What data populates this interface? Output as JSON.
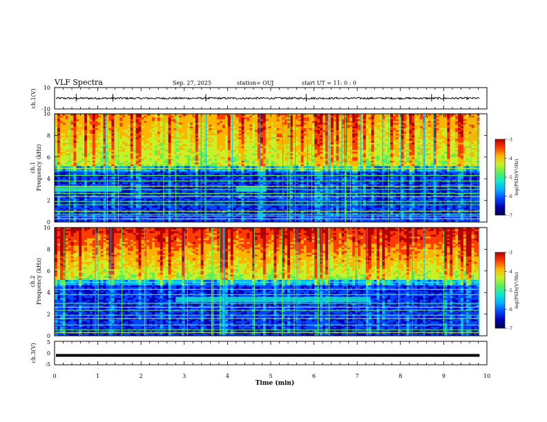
{
  "header": {
    "title": "VLF Spectra",
    "date": "Sep. 27, 2025",
    "station": "station= OUJ",
    "start": "start  UT =   11: 0  : 0"
  },
  "chart_data": [
    {
      "type": "line",
      "name": "ch1-waveform",
      "ylabel": "ch.1(V)",
      "ylim": [
        -10,
        10
      ],
      "yticks": [
        "10",
        "-10"
      ],
      "x_range_min": [
        0,
        9.83
      ],
      "baseline_v": 0,
      "color": "#000000"
    },
    {
      "type": "heatmap",
      "name": "ch1-spectrogram",
      "ylabel_line1": "ch.1",
      "ylabel_line2": "Frequency  (kHz)",
      "ylim_khz": [
        0,
        10
      ],
      "yticks": [
        "0",
        "2",
        "4",
        "6",
        "8",
        "10"
      ],
      "x_range_min": [
        0,
        9.83
      ],
      "colorbar": {
        "label": "log(PSD)(V²/Hz)",
        "range": [
          -7,
          -3
        ],
        "ticks": [
          "-3",
          "-4",
          "-5",
          "-6",
          "-7"
        ]
      },
      "horizontal_lines_khz": [
        0.3,
        0.55,
        0.7,
        1.0,
        1.6,
        1.9,
        2.35,
        2.65,
        3.0,
        3.3,
        3.8,
        4.3,
        4.95
      ],
      "emission_band": {
        "freq_khz": [
          2.8,
          3.3
        ],
        "time_min": [
          [
            0,
            1.55
          ],
          [
            4.2,
            4.9
          ]
        ]
      }
    },
    {
      "type": "heatmap",
      "name": "ch2-spectrogram",
      "ylabel_line1": "ch.2",
      "ylabel_line2": "Frequency  (kHz)",
      "ylim_khz": [
        0,
        10
      ],
      "yticks": [
        "0",
        "2",
        "4",
        "6",
        "8",
        "10"
      ],
      "x_range_min": [
        0,
        9.83
      ],
      "colorbar": {
        "label": "log(PSD)(V²/Hz)",
        "range": [
          -7,
          -3
        ],
        "ticks": [
          "-3",
          "-4",
          "-5",
          "-6",
          "-7"
        ]
      },
      "horizontal_lines_khz": [
        0.3,
        0.55,
        1.0,
        1.6,
        1.9,
        2.35,
        2.65,
        3.0,
        3.8,
        4.3,
        4.95
      ],
      "emission_band": {
        "freq_khz": [
          3.1,
          3.6
        ],
        "time_min": [
          [
            2.8,
            7.3
          ]
        ]
      }
    },
    {
      "type": "line",
      "name": "ch3-waveform",
      "ylabel": "ch.3(V)",
      "ylim": [
        -5,
        5
      ],
      "yticks": [
        "5",
        "0",
        "-5"
      ],
      "x_range_min": [
        0,
        9.83
      ],
      "baseline_v": -1.0,
      "color": "#000000"
    }
  ],
  "xaxis": {
    "label": "Time  (min)",
    "lim": [
      0,
      10
    ],
    "ticks": [
      "0",
      "1",
      "2",
      "3",
      "4",
      "5",
      "6",
      "7",
      "8",
      "9",
      "10"
    ]
  },
  "colormap": [
    "#00004a",
    "#0000b4",
    "#0046ff",
    "#00b4ff",
    "#10e8c8",
    "#5af05a",
    "#c8f028",
    "#ffb400",
    "#ff3c00",
    "#b40000"
  ]
}
